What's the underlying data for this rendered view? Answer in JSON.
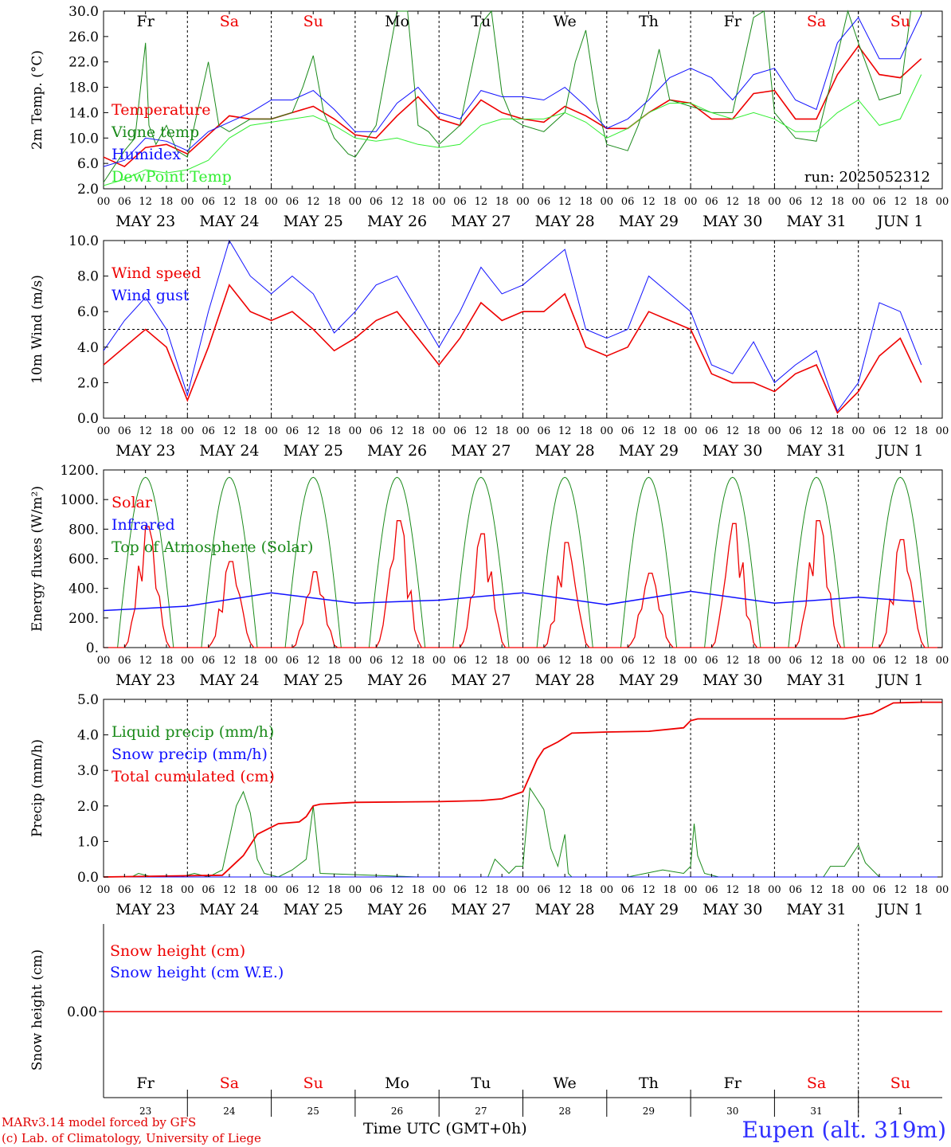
{
  "footer": {
    "credit_line1": "MARv3.14 model forced by GFS",
    "credit_line2": "(c) Lab. of Climatology, University of Liege",
    "time_axis_label": "Time UTC (GMT+0h)",
    "station": "Eupen (alt. 319m)"
  },
  "run_label": "run: 2025052312",
  "colors": {
    "red": "#ee0000",
    "green": "#1a8a1a",
    "blue": "#1010ff",
    "lightgreen": "#33ee33",
    "weekend": "#ee0000"
  },
  "time_axis": {
    "hour_ticks": [
      "00",
      "06",
      "12",
      "18"
    ],
    "dates": [
      "MAY 23",
      "MAY 24",
      "MAY 25",
      "MAY 26",
      "MAY 27",
      "MAY 28",
      "MAY 29",
      "MAY 30",
      "MAY 31",
      "JUN  1"
    ],
    "weekdays": [
      "Fr",
      "Sa",
      "Su",
      "Mo",
      "Tu",
      "We",
      "Th",
      "Fr",
      "Sa",
      "Su"
    ],
    "weekend_flags": [
      false,
      true,
      true,
      false,
      false,
      false,
      false,
      false,
      true,
      true
    ],
    "day_numbers": [
      "23",
      "24",
      "25",
      "26",
      "27",
      "28",
      "29",
      "30",
      "31",
      "1"
    ]
  },
  "chart_data": [
    {
      "type": "line",
      "ylabel": "2m Temp. (°C)",
      "ylim": [
        2.0,
        30.0
      ],
      "yticks": [
        "2.0",
        "6.0",
        "10.0",
        "14.0",
        "18.0",
        "22.0",
        "26.0",
        "30.0"
      ],
      "x_unit": "hours since MAY 23 00 UTC",
      "series": [
        {
          "name": "Temperature",
          "color": "#ee0000",
          "x": [
            0,
            6,
            12,
            18,
            24,
            30,
            36,
            42,
            48,
            54,
            60,
            66,
            72,
            78,
            84,
            90,
            96,
            102,
            108,
            114,
            120,
            126,
            132,
            138,
            144,
            150,
            156,
            162,
            168,
            174,
            180,
            186,
            192,
            198,
            204,
            210,
            216,
            222,
            228,
            234
          ],
          "values": [
            7.0,
            5.5,
            8.5,
            9.0,
            7.5,
            10.5,
            13.5,
            13.0,
            13.0,
            14.0,
            15.0,
            13.0,
            10.5,
            10.0,
            13.5,
            16.5,
            13.0,
            12.0,
            16.0,
            14.0,
            13.0,
            12.5,
            15.0,
            13.5,
            11.5,
            11.5,
            14.0,
            16.0,
            15.5,
            13.0,
            13.0,
            17.0,
            17.5,
            13.0,
            13.0,
            20.0,
            24.5,
            20.0,
            19.5,
            22.5
          ]
        },
        {
          "name": "Vigne temp",
          "color": "#1a8a1a",
          "x": [
            0,
            6,
            9,
            12,
            13,
            15,
            18,
            21,
            24,
            30,
            33,
            36,
            42,
            48,
            54,
            57,
            60,
            63,
            66,
            70,
            72,
            78,
            84,
            87,
            90,
            93,
            96,
            102,
            108,
            111,
            114,
            117,
            120,
            126,
            132,
            135,
            138,
            141,
            144,
            150,
            153,
            156,
            159,
            162,
            168,
            174,
            180,
            186,
            189,
            192,
            198,
            204,
            210,
            213,
            216,
            222,
            228,
            231,
            234
          ],
          "values": [
            3.0,
            8.0,
            10.0,
            25.0,
            12.0,
            9.0,
            12.0,
            8.0,
            7.0,
            22.0,
            12.0,
            11.0,
            13.0,
            13.0,
            14.0,
            18.0,
            23.0,
            14.0,
            10.0,
            7.5,
            7.0,
            12.0,
            31.0,
            30.0,
            12.0,
            11.0,
            9.0,
            12.0,
            28.0,
            30.0,
            17.0,
            13.0,
            12.0,
            11.0,
            14.0,
            22.0,
            27.0,
            16.0,
            9.0,
            8.0,
            12.0,
            17.0,
            24.0,
            16.0,
            15.0,
            14.0,
            14.0,
            29.0,
            31.0,
            14.0,
            10.0,
            9.5,
            23.0,
            31.0,
            25.0,
            16.0,
            17.0,
            30.0,
            30.0
          ]
        },
        {
          "name": "Humidex",
          "color": "#1010ff",
          "x": [
            0,
            6,
            12,
            18,
            24,
            30,
            36,
            42,
            48,
            54,
            60,
            66,
            72,
            78,
            84,
            90,
            96,
            102,
            108,
            114,
            120,
            126,
            132,
            138,
            144,
            150,
            156,
            162,
            168,
            174,
            180,
            186,
            192,
            198,
            204,
            210,
            216,
            222,
            228,
            234
          ],
          "values": [
            5.5,
            6.5,
            10.0,
            9.5,
            8.0,
            11.0,
            12.5,
            14.0,
            16.0,
            16.0,
            17.5,
            14.5,
            11.0,
            11.0,
            15.5,
            18.0,
            14.0,
            13.0,
            17.5,
            16.5,
            16.5,
            16.0,
            18.0,
            15.0,
            11.5,
            13.0,
            16.0,
            19.5,
            21.0,
            19.5,
            16.0,
            20.0,
            21.0,
            16.0,
            14.5,
            25.0,
            29.0,
            22.5,
            22.5,
            29.5
          ]
        },
        {
          "name": "DewPoint Temp",
          "color": "#33ee33",
          "x": [
            0,
            6,
            12,
            18,
            24,
            30,
            36,
            42,
            48,
            54,
            60,
            66,
            72,
            78,
            84,
            90,
            96,
            102,
            108,
            114,
            120,
            126,
            132,
            138,
            144,
            150,
            156,
            162,
            168,
            174,
            180,
            186,
            192,
            198,
            204,
            210,
            216,
            222,
            228,
            234
          ],
          "values": [
            2.5,
            3.5,
            5.0,
            4.5,
            5.0,
            6.5,
            10.0,
            12.0,
            12.5,
            13.0,
            13.5,
            12.0,
            10.0,
            9.5,
            10.0,
            9.0,
            8.5,
            9.0,
            12.0,
            13.0,
            13.0,
            13.0,
            14.0,
            12.5,
            10.0,
            11.5,
            14.0,
            15.5,
            15.5,
            14.0,
            13.0,
            14.0,
            13.0,
            11.0,
            11.0,
            14.0,
            16.0,
            12.0,
            13.0,
            20.0
          ]
        }
      ],
      "legend": [
        "Temperature",
        "Vigne temp",
        "Humidex",
        "DewPoint Temp"
      ]
    },
    {
      "type": "line",
      "ylabel": "10m Wind (m/s)",
      "ylim": [
        0.0,
        10.0
      ],
      "yticks": [
        "0.0",
        "2.0",
        "4.0",
        "6.0",
        "8.0",
        "10.0"
      ],
      "reference_line": 5.0,
      "x_unit": "hours since MAY 23 00 UTC",
      "series": [
        {
          "name": "Wind speed",
          "color": "#ee0000",
          "x": [
            0,
            6,
            12,
            18,
            24,
            30,
            36,
            42,
            48,
            54,
            60,
            66,
            72,
            78,
            84,
            90,
            96,
            102,
            108,
            114,
            120,
            126,
            132,
            138,
            144,
            150,
            156,
            162,
            168,
            174,
            180,
            186,
            192,
            198,
            204,
            210,
            216,
            222,
            228,
            234
          ],
          "values": [
            3.0,
            4.0,
            5.0,
            4.0,
            1.0,
            4.0,
            7.5,
            6.0,
            5.5,
            6.0,
            5.0,
            3.8,
            4.5,
            5.5,
            6.0,
            4.5,
            3.0,
            4.5,
            6.5,
            5.5,
            6.0,
            6.0,
            7.0,
            4.0,
            3.5,
            4.0,
            6.0,
            5.5,
            5.0,
            2.5,
            2.0,
            2.0,
            1.5,
            2.5,
            3.0,
            0.3,
            1.5,
            3.5,
            4.5,
            2.0
          ]
        },
        {
          "name": "Wind gust",
          "color": "#1010ff",
          "x": [
            0,
            6,
            12,
            18,
            24,
            30,
            36,
            42,
            48,
            54,
            60,
            66,
            72,
            78,
            84,
            90,
            96,
            102,
            108,
            114,
            120,
            126,
            132,
            138,
            144,
            150,
            156,
            162,
            168,
            174,
            180,
            186,
            192,
            198,
            204,
            210,
            216,
            222,
            228,
            234
          ],
          "values": [
            3.8,
            5.5,
            6.8,
            5.0,
            1.3,
            6.0,
            10.0,
            8.0,
            7.0,
            8.0,
            7.0,
            4.8,
            6.0,
            7.5,
            8.0,
            6.0,
            4.0,
            6.0,
            8.5,
            7.0,
            7.5,
            8.5,
            9.5,
            5.0,
            4.5,
            5.0,
            8.0,
            7.0,
            6.0,
            3.0,
            2.5,
            4.3,
            2.0,
            3.0,
            3.8,
            0.4,
            2.0,
            6.5,
            6.0,
            3.0
          ]
        }
      ],
      "legend": [
        "Wind speed",
        "Wind gust"
      ]
    },
    {
      "type": "line",
      "ylabel": "Energy fluxes (W/m²)",
      "ylim": [
        0,
        1200
      ],
      "yticks": [
        "0.",
        "200.",
        "400.",
        "600.",
        "800.",
        "1000.",
        "1200."
      ],
      "x_unit": "hours since MAY 23 00 UTC",
      "series": [
        {
          "name": "Solar",
          "color": "#ee0000",
          "daily_peak": [
            830,
            590,
            520,
            870,
            780,
            720,
            510,
            850,
            870,
            740
          ]
        },
        {
          "name": "Infrared",
          "color": "#1010ff",
          "x": [
            0,
            24,
            48,
            72,
            96,
            120,
            144,
            168,
            192,
            216,
            234
          ],
          "values": [
            250,
            280,
            370,
            300,
            320,
            370,
            290,
            380,
            300,
            340,
            310
          ]
        },
        {
          "name": "Top of Atmosphere (Solar)",
          "color": "#1a8a1a",
          "daily_peak": [
            1150,
            1150,
            1150,
            1150,
            1150,
            1150,
            1150,
            1150,
            1150,
            1150
          ]
        }
      ],
      "legend": [
        "Solar",
        "Infrared",
        "Top of Atmosphere (Solar)"
      ]
    },
    {
      "type": "line",
      "ylabel": "Precip (mm/h)",
      "ylim": [
        0.0,
        5.0
      ],
      "yticks": [
        "0.0",
        "1.0",
        "2.0",
        "3.0",
        "4.0",
        "5.0"
      ],
      "x_unit": "hours since MAY 23 00 UTC",
      "series": [
        {
          "name": "Liquid precip (mm/h)",
          "color": "#1a8a1a",
          "x": [
            0,
            8,
            10,
            14,
            18,
            20,
            22,
            26,
            30,
            34,
            38,
            40,
            42,
            44,
            46,
            50,
            54,
            58,
            60,
            62,
            90,
            110,
            112,
            116,
            118,
            120,
            122,
            124,
            126,
            128,
            130,
            132,
            133,
            134,
            136,
            138,
            142,
            150,
            160,
            166,
            168,
            169,
            170,
            172,
            176,
            186,
            196,
            202,
            206,
            208,
            212,
            214,
            216,
            218,
            222,
            234
          ],
          "values": [
            0,
            0,
            0.1,
            0,
            0,
            0,
            0,
            0.1,
            0,
            0.2,
            2.0,
            2.4,
            1.8,
            0.5,
            0.1,
            0,
            0.2,
            0.5,
            2.0,
            0.1,
            0,
            0,
            0.5,
            0.1,
            0.3,
            0.3,
            2.5,
            2.2,
            1.9,
            0.8,
            0.3,
            1.2,
            0.1,
            0,
            0,
            0,
            0,
            0,
            0.2,
            0.1,
            0.3,
            1.5,
            0.6,
            0.1,
            0,
            0,
            0,
            0,
            0,
            0.3,
            0.3,
            0.6,
            0.9,
            0.4,
            0,
            0
          ]
        },
        {
          "name": "Snow precip (mm/h)",
          "color": "#1010ff",
          "x": [
            0,
            240
          ],
          "values": [
            0,
            0
          ]
        },
        {
          "name": "Total cumulated (cm)",
          "color": "#ee0000",
          "x": [
            0,
            34,
            40,
            44,
            50,
            56,
            58,
            60,
            62,
            72,
            96,
            108,
            114,
            120,
            124,
            126,
            130,
            134,
            144,
            156,
            166,
            168,
            170,
            180,
            196,
            212,
            220,
            226,
            234,
            240
          ],
          "values": [
            0,
            0.05,
            0.6,
            1.2,
            1.5,
            1.55,
            1.7,
            2.0,
            2.05,
            2.1,
            2.12,
            2.15,
            2.2,
            2.4,
            3.3,
            3.6,
            3.8,
            4.05,
            4.08,
            4.1,
            4.2,
            4.4,
            4.45,
            4.45,
            4.45,
            4.45,
            4.6,
            4.9,
            4.92,
            4.92
          ]
        }
      ],
      "legend": [
        "Liquid precip (mm/h)",
        "Snow precip (mm/h)",
        "Total cumulated (cm)"
      ]
    },
    {
      "type": "line",
      "ylabel": "Snow height (cm)",
      "yticks": [
        "0.00"
      ],
      "series": [
        {
          "name": "Snow height (cm)",
          "color": "#ee0000",
          "x": [
            0,
            240
          ],
          "values": [
            0,
            0
          ]
        },
        {
          "name": "Snow height (cm W.E.)",
          "color": "#1010ff",
          "x": [
            0,
            240
          ],
          "values": [
            0,
            0
          ]
        }
      ],
      "legend": [
        "Snow height (cm)",
        "Snow height (cm W.E.)"
      ]
    }
  ]
}
